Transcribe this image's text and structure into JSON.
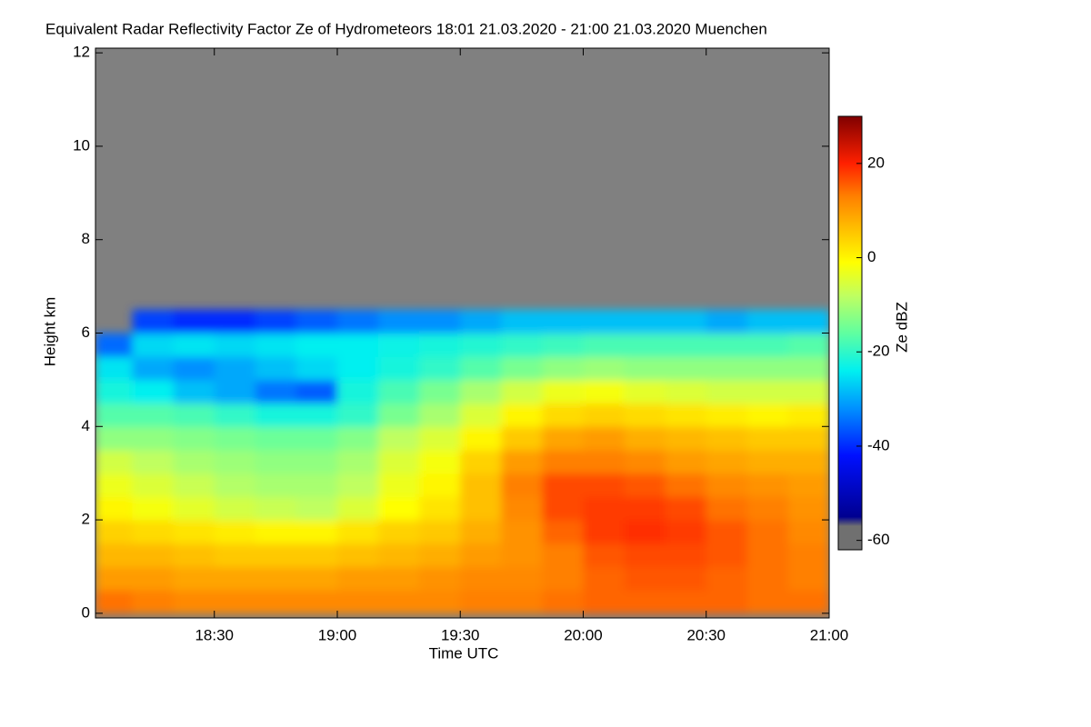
{
  "chart_data": {
    "type": "heatmap",
    "title": "Equivalent Radar Reflectivity Factor Ze of Hydrometeors   18:01 21.03.2020 - 21:00 21.03.2020 Muenchen",
    "x_label": "Time UTC",
    "y_label": "Height km",
    "colorbar_label": "Ze dBZ",
    "x_bins": [
      "18:01",
      "18:10",
      "18:20",
      "18:30",
      "18:40",
      "18:50",
      "19:00",
      "19:10",
      "19:20",
      "19:30",
      "19:40",
      "19:50",
      "20:00",
      "20:10",
      "20:20",
      "20:30",
      "20:40",
      "20:50",
      "21:00"
    ],
    "y_bins": [
      0,
      0.5,
      1,
      1.5,
      2,
      2.5,
      3,
      3.5,
      4,
      4.5,
      5,
      5.5,
      6,
      6.5
    ],
    "z": [
      [
        14,
        13,
        12,
        12,
        12,
        12,
        12,
        12,
        12,
        13,
        13,
        14,
        15,
        15,
        15,
        15,
        14,
        14
      ],
      [
        10,
        10,
        9,
        9,
        9,
        9,
        10,
        10,
        11,
        12,
        12,
        13,
        15,
        16,
        16,
        15,
        14,
        13
      ],
      [
        7,
        7,
        6,
        5,
        5,
        5,
        6,
        7,
        8,
        10,
        11,
        13,
        16,
        17,
        17,
        16,
        14,
        13
      ],
      [
        4,
        3,
        2,
        1,
        0,
        0,
        2,
        4,
        5,
        8,
        11,
        15,
        18,
        19,
        18,
        16,
        14,
        12
      ],
      [
        0,
        -2,
        -4,
        -6,
        -7,
        -8,
        -5,
        -1,
        2,
        6,
        12,
        17,
        18,
        18,
        17,
        14,
        13,
        11
      ],
      [
        -3,
        -5,
        -7,
        -9,
        -10,
        -10,
        -8,
        -3,
        0,
        6,
        13,
        17,
        17,
        16,
        14,
        12,
        11,
        10
      ],
      [
        -6,
        -8,
        -10,
        -11,
        -12,
        -12,
        -10,
        -5,
        -2,
        4,
        10,
        13,
        13,
        12,
        10,
        9,
        8,
        8
      ],
      [
        -12,
        -12,
        -13,
        -14,
        -15,
        -15,
        -13,
        -8,
        -5,
        0,
        5,
        9,
        10,
        8,
        7,
        6,
        5,
        5
      ],
      [
        -17,
        -17,
        -18,
        -20,
        -22,
        -22,
        -20,
        -14,
        -10,
        -5,
        0,
        3,
        4,
        3,
        2,
        1,
        0,
        1
      ],
      [
        -22,
        -24,
        -28,
        -30,
        -34,
        -36,
        -22,
        -18,
        -14,
        -10,
        -6,
        -3,
        -2,
        -4,
        -5,
        -6,
        -6,
        -6
      ],
      [
        -25,
        -30,
        -32,
        -30,
        -28,
        -26,
        -24,
        -22,
        -20,
        -17,
        -14,
        -12,
        -11,
        -12,
        -12,
        -12,
        -12,
        -12
      ],
      [
        -35,
        -26,
        -25,
        -26,
        -25,
        -24,
        -24,
        -23,
        -22,
        -21,
        -20,
        -19,
        -18,
        -18,
        -18,
        -18,
        -18,
        -17
      ],
      [
        null,
        -38,
        -40,
        -40,
        -38,
        -36,
        -34,
        -32,
        -32,
        -30,
        -28,
        -28,
        -28,
        -28,
        -28,
        -30,
        -28,
        -28
      ]
    ],
    "xlim": [
      "18:01",
      "21:00"
    ],
    "xticks": [
      "18:30",
      "19:00",
      "19:30",
      "20:00",
      "20:30",
      "21:00"
    ],
    "ylim": [
      -0.1,
      12.1
    ],
    "yticks": [
      0,
      2,
      4,
      6,
      8,
      10,
      12
    ],
    "zlim": [
      -62,
      30
    ],
    "zticks": [
      -60,
      -40,
      -20,
      0,
      20
    ],
    "no_signal_color": "#808080",
    "colorscale": [
      [
        -62,
        "#707070"
      ],
      [
        -57,
        "#707070"
      ],
      [
        -55,
        "#000090"
      ],
      [
        -42,
        "#0010ff"
      ],
      [
        -32,
        "#0090ff"
      ],
      [
        -24,
        "#00f0f0"
      ],
      [
        -16,
        "#60ffa0"
      ],
      [
        -8,
        "#c0ff60"
      ],
      [
        -1,
        "#ffff00"
      ],
      [
        6,
        "#ffc000"
      ],
      [
        13,
        "#ff8000"
      ],
      [
        20,
        "#ff2000"
      ],
      [
        30,
        "#800000"
      ]
    ]
  }
}
